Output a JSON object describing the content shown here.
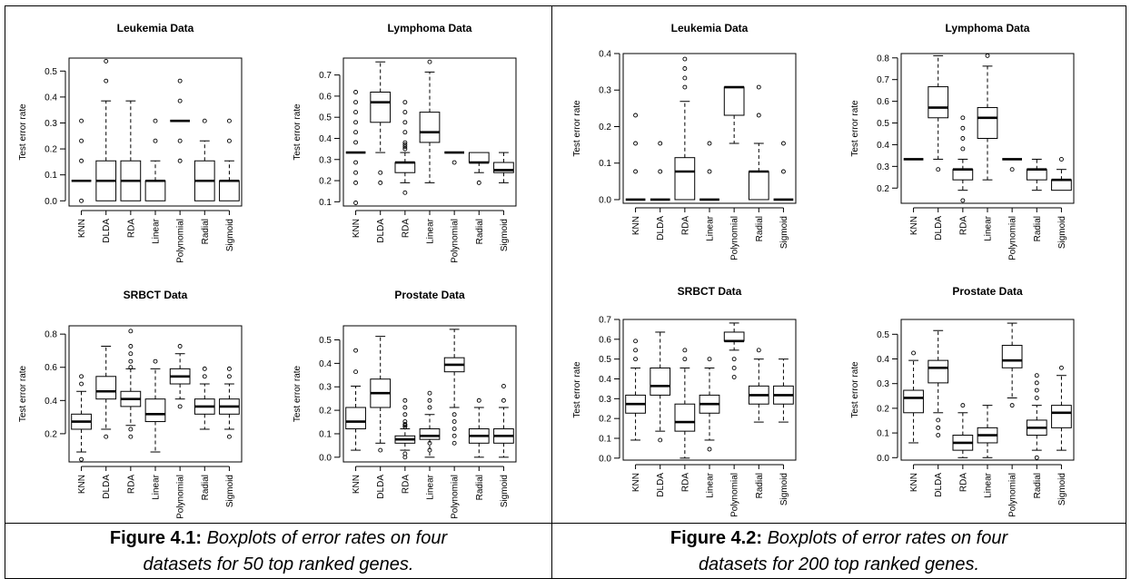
{
  "figures": [
    {
      "caption_label": "Figure 4.1:",
      "caption_line1": "Boxplots of error rates on four",
      "caption_line2": "datasets for 50 top ranked genes."
    },
    {
      "caption_label": "Figure 4.2:",
      "caption_line1": "Boxplots of error rates on four",
      "caption_line2": "datasets for 200 top ranked genes."
    }
  ],
  "chart_data": [
    {
      "type": "boxplot",
      "figure": 0,
      "title": "Leukemia Data",
      "ylabel": "Test error rate",
      "ylim": [
        -0.02,
        0.55
      ],
      "yticks": [
        "0.0",
        "0.1",
        "0.2",
        "0.3",
        "0.4",
        "0.5"
      ],
      "ytick_values": [
        0,
        0.1,
        0.2,
        0.3,
        0.4,
        0.5
      ],
      "categories": [
        "KNN",
        "DLDA",
        "RDA",
        "Linear",
        "Polynomial",
        "Radial",
        "Sigmoid"
      ],
      "boxes": [
        {
          "min": 0.077,
          "q1": 0.077,
          "median": 0.077,
          "q3": 0.077,
          "max": 0.077,
          "outliers": [
            0.0,
            0.154,
            0.231,
            0.308
          ]
        },
        {
          "min": 0.0,
          "q1": 0.0,
          "median": 0.077,
          "q3": 0.154,
          "max": 0.385,
          "outliers": [
            0.462,
            0.538
          ]
        },
        {
          "min": 0.0,
          "q1": 0.0,
          "median": 0.077,
          "q3": 0.154,
          "max": 0.385,
          "outliers": []
        },
        {
          "min": 0.0,
          "q1": 0.0,
          "median": 0.077,
          "q3": 0.077,
          "max": 0.154,
          "outliers": [
            0.231,
            0.308
          ]
        },
        {
          "min": 0.308,
          "q1": 0.308,
          "median": 0.308,
          "q3": 0.308,
          "max": 0.308,
          "outliers": [
            0.154,
            0.231,
            0.385,
            0.462
          ]
        },
        {
          "min": 0.0,
          "q1": 0.0,
          "median": 0.077,
          "q3": 0.154,
          "max": 0.231,
          "outliers": [
            0.308
          ]
        },
        {
          "min": 0.0,
          "q1": 0.0,
          "median": 0.077,
          "q3": 0.077,
          "max": 0.154,
          "outliers": [
            0.231,
            0.308
          ]
        }
      ]
    },
    {
      "type": "boxplot",
      "figure": 0,
      "title": "Lymphoma Data",
      "ylabel": "Test error rate",
      "ylim": [
        0.08,
        0.78
      ],
      "yticks": [
        "0.1",
        "0.2",
        "0.3",
        "0.4",
        "0.5",
        "0.6",
        "0.7"
      ],
      "ytick_values": [
        0.1,
        0.2,
        0.3,
        0.4,
        0.5,
        0.6,
        0.7
      ],
      "categories": [
        "KNN",
        "DLDA",
        "RDA",
        "Linear",
        "Polynomial",
        "Radial",
        "Sigmoid"
      ],
      "boxes": [
        {
          "min": 0.333,
          "q1": 0.333,
          "median": 0.333,
          "q3": 0.333,
          "max": 0.333,
          "outliers": [
            0.095,
            0.19,
            0.238,
            0.286,
            0.381,
            0.429,
            0.476,
            0.524,
            0.571,
            0.619
          ]
        },
        {
          "min": 0.333,
          "q1": 0.476,
          "median": 0.571,
          "q3": 0.619,
          "max": 0.762,
          "outliers": [
            0.19,
            0.238
          ]
        },
        {
          "min": 0.19,
          "q1": 0.238,
          "median": 0.286,
          "q3": 0.286,
          "max": 0.333,
          "outliers": [
            0.143,
            0.35,
            0.36,
            0.37,
            0.38,
            0.429,
            0.476,
            0.524,
            0.571
          ]
        },
        {
          "min": 0.19,
          "q1": 0.381,
          "median": 0.429,
          "q3": 0.524,
          "max": 0.714,
          "outliers": [
            0.762
          ]
        },
        {
          "min": 0.333,
          "q1": 0.333,
          "median": 0.333,
          "q3": 0.333,
          "max": 0.333,
          "outliers": [
            0.286
          ]
        },
        {
          "min": 0.238,
          "q1": 0.286,
          "median": 0.286,
          "q3": 0.333,
          "max": 0.333,
          "outliers": [
            0.19
          ]
        },
        {
          "min": 0.19,
          "q1": 0.238,
          "median": 0.25,
          "q3": 0.286,
          "max": 0.333,
          "outliers": []
        }
      ]
    },
    {
      "type": "boxplot",
      "figure": 0,
      "title": "SRBCT Data",
      "ylabel": "Test error rate",
      "ylim": [
        0.03,
        0.85
      ],
      "yticks": [
        "0.2",
        "0.4",
        "0.6",
        "0.8"
      ],
      "ytick_values": [
        0.2,
        0.4,
        0.6,
        0.8
      ],
      "categories": [
        "KNN",
        "DLDA",
        "RDA",
        "Linear",
        "Polynomial",
        "Radial",
        "Sigmoid"
      ],
      "boxes": [
        {
          "min": 0.09,
          "q1": 0.227,
          "median": 0.273,
          "q3": 0.318,
          "max": 0.455,
          "outliers": [
            0.045,
            0.5,
            0.545
          ]
        },
        {
          "min": 0.227,
          "q1": 0.409,
          "median": 0.455,
          "q3": 0.545,
          "max": 0.727,
          "outliers": [
            0.182
          ]
        },
        {
          "min": 0.25,
          "q1": 0.364,
          "median": 0.409,
          "q3": 0.455,
          "max": 0.591,
          "outliers": [
            0.182,
            0.227,
            0.6,
            0.636,
            0.682,
            0.727,
            0.818
          ]
        },
        {
          "min": 0.09,
          "q1": 0.273,
          "median": 0.318,
          "q3": 0.409,
          "max": 0.591,
          "outliers": [
            0.636
          ]
        },
        {
          "min": 0.409,
          "q1": 0.5,
          "median": 0.545,
          "q3": 0.591,
          "max": 0.682,
          "outliers": [
            0.364,
            0.727
          ]
        },
        {
          "min": 0.227,
          "q1": 0.318,
          "median": 0.364,
          "q3": 0.409,
          "max": 0.5,
          "outliers": [
            0.545,
            0.591
          ]
        },
        {
          "min": 0.227,
          "q1": 0.318,
          "median": 0.364,
          "q3": 0.409,
          "max": 0.5,
          "outliers": [
            0.182,
            0.545,
            0.591
          ]
        }
      ]
    },
    {
      "type": "boxplot",
      "figure": 0,
      "title": "Prostate Data",
      "ylabel": "Test error rate",
      "ylim": [
        -0.02,
        0.56
      ],
      "yticks": [
        "0.0",
        "0.1",
        "0.2",
        "0.3",
        "0.4",
        "0.5"
      ],
      "ytick_values": [
        0,
        0.1,
        0.2,
        0.3,
        0.4,
        0.5
      ],
      "categories": [
        "KNN",
        "DLDA",
        "RDA",
        "Linear",
        "Polynomial",
        "Radial",
        "Sigmoid"
      ],
      "boxes": [
        {
          "min": 0.03,
          "q1": 0.121,
          "median": 0.152,
          "q3": 0.212,
          "max": 0.303,
          "outliers": [
            0.364,
            0.455
          ]
        },
        {
          "min": 0.06,
          "q1": 0.212,
          "median": 0.273,
          "q3": 0.333,
          "max": 0.515,
          "outliers": [
            0.03
          ]
        },
        {
          "min": 0.03,
          "q1": 0.06,
          "median": 0.076,
          "q3": 0.091,
          "max": 0.121,
          "outliers": [
            0.0,
            0.015,
            0.13,
            0.136,
            0.14,
            0.152,
            0.182,
            0.212,
            0.242
          ]
        },
        {
          "min": 0.0,
          "q1": 0.076,
          "median": 0.091,
          "q3": 0.121,
          "max": 0.182,
          "outliers": [
            0.03,
            0.06,
            0.212,
            0.242,
            0.273
          ]
        },
        {
          "min": 0.212,
          "q1": 0.364,
          "median": 0.394,
          "q3": 0.424,
          "max": 0.545,
          "outliers": [
            0.06,
            0.091,
            0.121,
            0.152,
            0.182
          ]
        },
        {
          "min": 0.0,
          "q1": 0.06,
          "median": 0.091,
          "q3": 0.121,
          "max": 0.212,
          "outliers": [
            0.242
          ]
        },
        {
          "min": 0.0,
          "q1": 0.06,
          "median": 0.091,
          "q3": 0.121,
          "max": 0.212,
          "outliers": [
            0.242,
            0.303
          ]
        }
      ]
    },
    {
      "type": "boxplot",
      "figure": 1,
      "title": "Leukemia Data",
      "ylabel": "Test error rate",
      "ylim": [
        -0.01,
        0.4
      ],
      "yticks": [
        "0.0",
        "0.1",
        "0.2",
        "0.3",
        "0.4"
      ],
      "ytick_values": [
        0,
        0.1,
        0.2,
        0.3,
        0.4
      ],
      "categories": [
        "KNN",
        "DLDA",
        "RDA",
        "Linear",
        "Polynomial",
        "Radial",
        "Sigmoid"
      ],
      "boxes": [
        {
          "min": 0.0,
          "q1": 0.0,
          "median": 0.0,
          "q3": 0.0,
          "max": 0.0,
          "outliers": [
            0.077,
            0.154,
            0.231
          ]
        },
        {
          "min": 0.0,
          "q1": 0.0,
          "median": 0.0,
          "q3": 0.0,
          "max": 0.0,
          "outliers": [
            0.077,
            0.154
          ]
        },
        {
          "min": 0.0,
          "q1": 0.0,
          "median": 0.077,
          "q3": 0.115,
          "max": 0.269,
          "outliers": [
            0.308,
            0.333,
            0.359,
            0.385
          ]
        },
        {
          "min": 0.0,
          "q1": 0.0,
          "median": 0.0,
          "q3": 0.0,
          "max": 0.0,
          "outliers": [
            0.077,
            0.154
          ]
        },
        {
          "min": 0.154,
          "q1": 0.231,
          "median": 0.308,
          "q3": 0.308,
          "max": 0.308,
          "outliers": []
        },
        {
          "min": 0.0,
          "q1": 0.0,
          "median": 0.077,
          "q3": 0.077,
          "max": 0.154,
          "outliers": [
            0.231,
            0.308
          ]
        },
        {
          "min": 0.0,
          "q1": 0.0,
          "median": 0.0,
          "q3": 0.0,
          "max": 0.0,
          "outliers": [
            0.077,
            0.154
          ]
        }
      ]
    },
    {
      "type": "boxplot",
      "figure": 1,
      "title": "Lymphoma Data",
      "ylabel": "Test error rate",
      "ylim": [
        0.13,
        0.82
      ],
      "yticks": [
        "0.2",
        "0.3",
        "0.4",
        "0.5",
        "0.6",
        "0.7",
        "0.8"
      ],
      "ytick_values": [
        0.2,
        0.3,
        0.4,
        0.5,
        0.6,
        0.7,
        0.8
      ],
      "categories": [
        "KNN",
        "DLDA",
        "RDA",
        "Linear",
        "Polynomial",
        "Radial",
        "Sigmoid"
      ],
      "boxes": [
        {
          "min": 0.333,
          "q1": 0.333,
          "median": 0.333,
          "q3": 0.333,
          "max": 0.333,
          "outliers": []
        },
        {
          "min": 0.333,
          "q1": 0.524,
          "median": 0.571,
          "q3": 0.667,
          "max": 0.81,
          "outliers": [
            0.286
          ]
        },
        {
          "min": 0.19,
          "q1": 0.238,
          "median": 0.286,
          "q3": 0.286,
          "max": 0.333,
          "outliers": [
            0.143,
            0.381,
            0.429,
            0.476,
            0.524
          ]
        },
        {
          "min": 0.238,
          "q1": 0.429,
          "median": 0.524,
          "q3": 0.571,
          "max": 0.762,
          "outliers": [
            0.81
          ]
        },
        {
          "min": 0.333,
          "q1": 0.333,
          "median": 0.333,
          "q3": 0.333,
          "max": 0.333,
          "outliers": [
            0.286
          ]
        },
        {
          "min": 0.19,
          "q1": 0.238,
          "median": 0.286,
          "q3": 0.286,
          "max": 0.333,
          "outliers": []
        },
        {
          "min": 0.19,
          "q1": 0.19,
          "median": 0.238,
          "q3": 0.238,
          "max": 0.286,
          "outliers": [
            0.333
          ]
        }
      ]
    },
    {
      "type": "boxplot",
      "figure": 1,
      "title": "SRBCT Data",
      "ylabel": "Test error rate",
      "ylim": [
        -0.01,
        0.7
      ],
      "yticks": [
        "0.0",
        "0.1",
        "0.2",
        "0.3",
        "0.4",
        "0.5",
        "0.6",
        "0.7"
      ],
      "ytick_values": [
        0,
        0.1,
        0.2,
        0.3,
        0.4,
        0.5,
        0.6,
        0.7
      ],
      "categories": [
        "KNN",
        "DLDA",
        "RDA",
        "Linear",
        "Polynomial",
        "Radial",
        "Sigmoid"
      ],
      "boxes": [
        {
          "min": 0.091,
          "q1": 0.227,
          "median": 0.273,
          "q3": 0.318,
          "max": 0.455,
          "outliers": [
            0.5,
            0.545,
            0.591
          ]
        },
        {
          "min": 0.136,
          "q1": 0.318,
          "median": 0.364,
          "q3": 0.455,
          "max": 0.636,
          "outliers": [
            0.091
          ]
        },
        {
          "min": 0.0,
          "q1": 0.136,
          "median": 0.182,
          "q3": 0.273,
          "max": 0.455,
          "outliers": [
            0.5,
            0.545
          ]
        },
        {
          "min": 0.091,
          "q1": 0.227,
          "median": 0.273,
          "q3": 0.318,
          "max": 0.455,
          "outliers": [
            0.045,
            0.5
          ]
        },
        {
          "min": 0.545,
          "q1": 0.591,
          "median": 0.591,
          "q3": 0.636,
          "max": 0.682,
          "outliers": [
            0.409,
            0.455,
            0.5
          ]
        },
        {
          "min": 0.182,
          "q1": 0.273,
          "median": 0.318,
          "q3": 0.364,
          "max": 0.5,
          "outliers": [
            0.545
          ]
        },
        {
          "min": 0.182,
          "q1": 0.273,
          "median": 0.318,
          "q3": 0.364,
          "max": 0.5,
          "outliers": []
        }
      ]
    },
    {
      "type": "boxplot",
      "figure": 1,
      "title": "Prostate Data",
      "ylabel": "Test error rate",
      "ylim": [
        -0.01,
        0.56
      ],
      "yticks": [
        "0.0",
        "0.1",
        "0.2",
        "0.3",
        "0.4",
        "0.5"
      ],
      "ytick_values": [
        0,
        0.1,
        0.2,
        0.3,
        0.4,
        0.5
      ],
      "categories": [
        "KNN",
        "DLDA",
        "RDA",
        "Linear",
        "Polynomial",
        "Radial",
        "Sigmoid"
      ],
      "boxes": [
        {
          "min": 0.06,
          "q1": 0.182,
          "median": 0.242,
          "q3": 0.273,
          "max": 0.394,
          "outliers": [
            0.424
          ]
        },
        {
          "min": 0.182,
          "q1": 0.303,
          "median": 0.364,
          "q3": 0.394,
          "max": 0.515,
          "outliers": [
            0.091,
            0.121,
            0.152
          ]
        },
        {
          "min": 0.0,
          "q1": 0.03,
          "median": 0.06,
          "q3": 0.091,
          "max": 0.182,
          "outliers": [
            0.212
          ]
        },
        {
          "min": 0.0,
          "q1": 0.06,
          "median": 0.091,
          "q3": 0.121,
          "max": 0.212,
          "outliers": []
        },
        {
          "min": 0.242,
          "q1": 0.364,
          "median": 0.394,
          "q3": 0.455,
          "max": 0.545,
          "outliers": [
            0.212
          ]
        },
        {
          "min": 0.03,
          "q1": 0.091,
          "median": 0.121,
          "q3": 0.152,
          "max": 0.212,
          "outliers": [
            0.0,
            0.242,
            0.273,
            0.303,
            0.333
          ]
        },
        {
          "min": 0.03,
          "q1": 0.121,
          "median": 0.182,
          "q3": 0.212,
          "max": 0.333,
          "outliers": [
            0.364
          ]
        }
      ]
    }
  ]
}
